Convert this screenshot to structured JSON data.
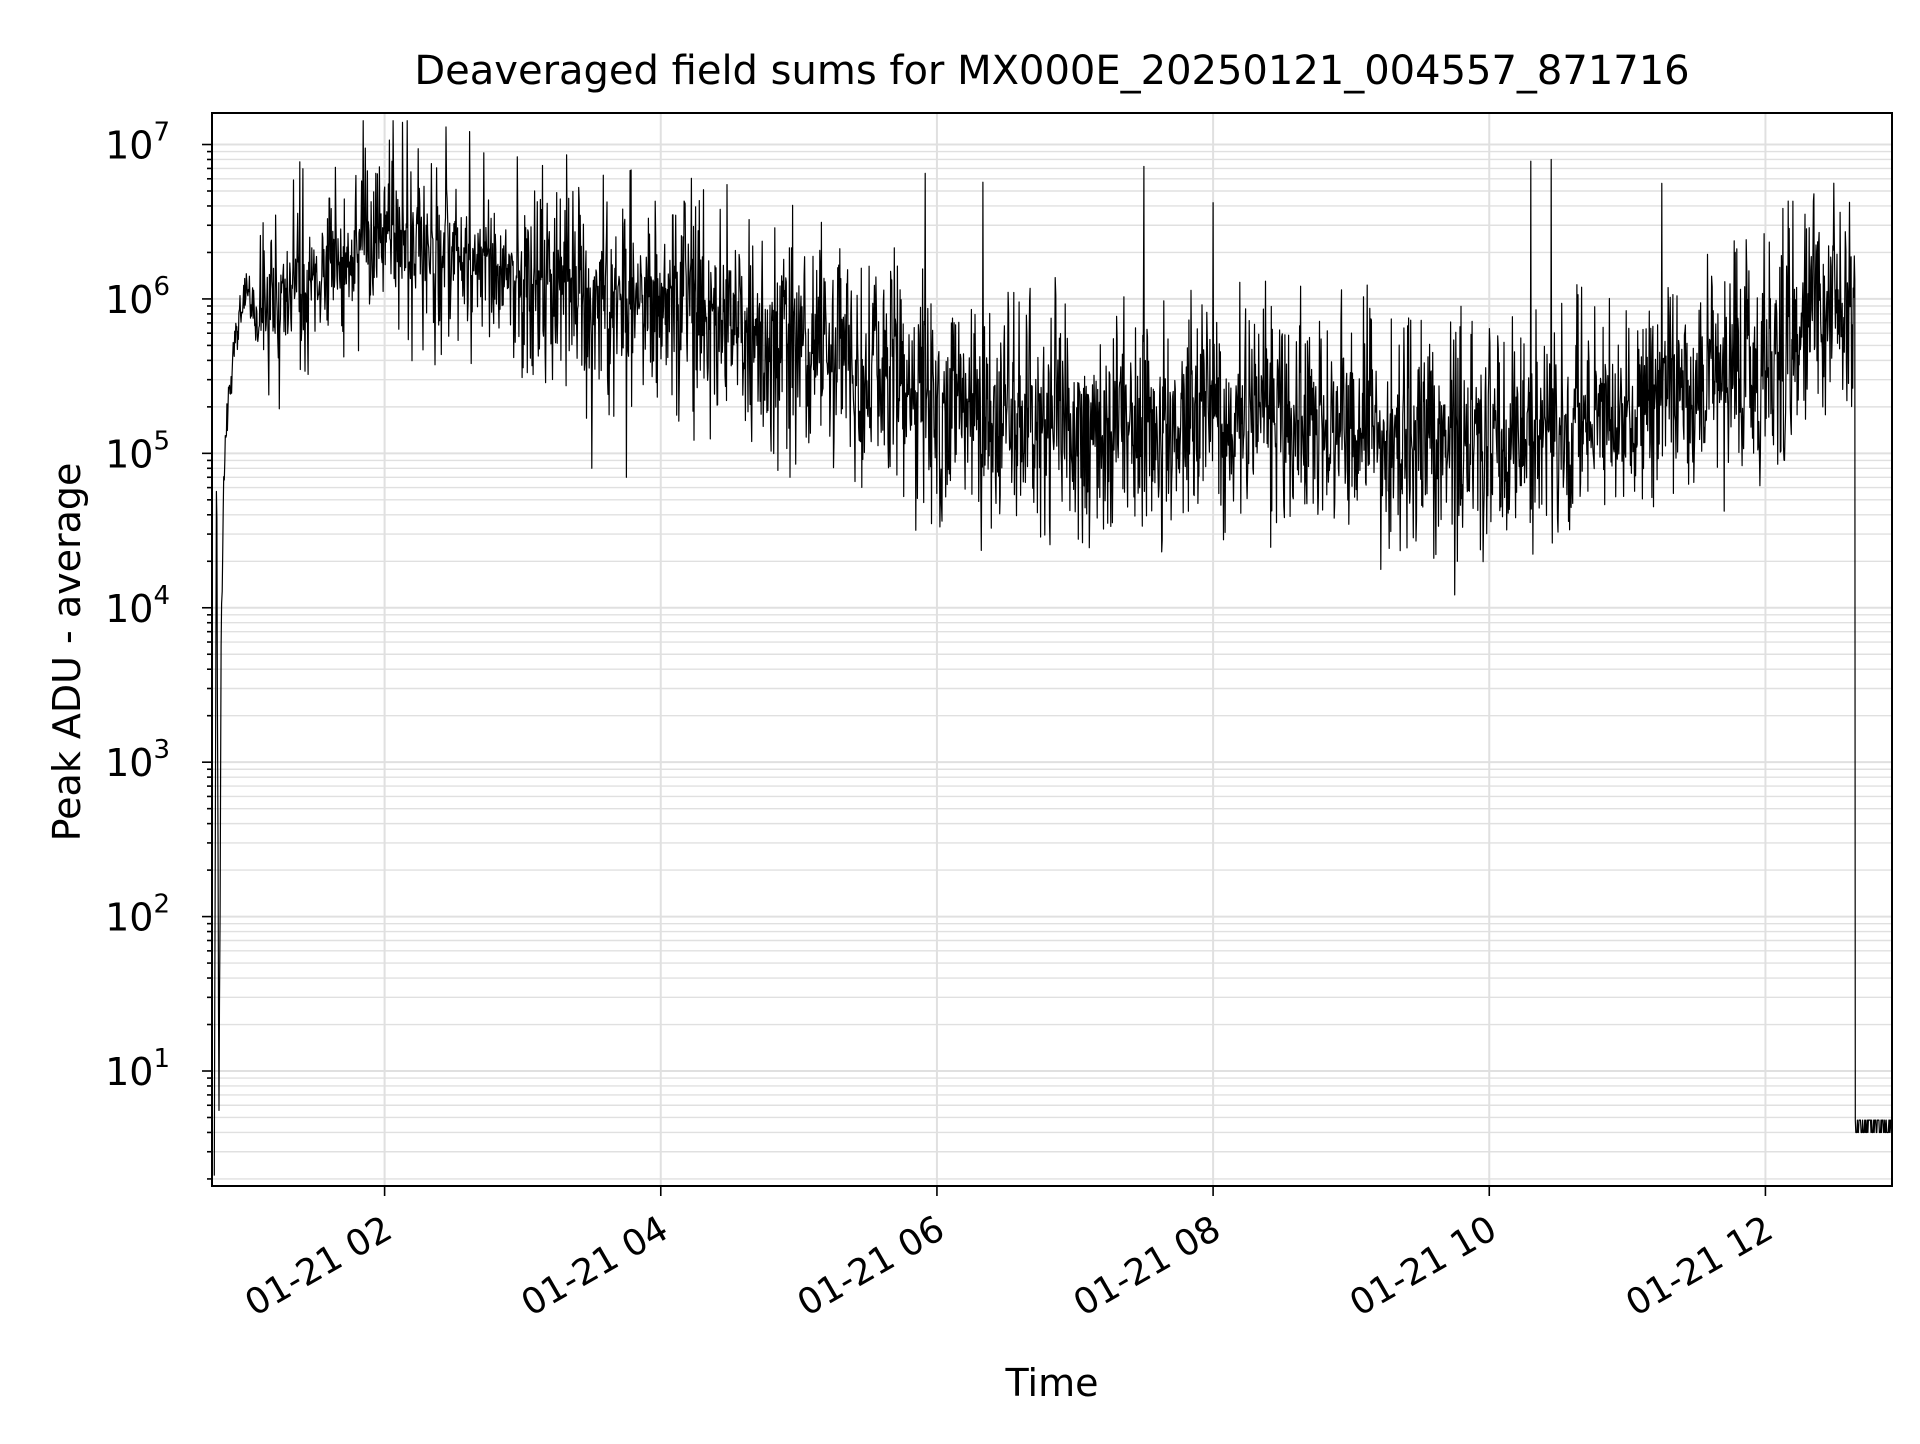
{
  "chart_data": {
    "type": "line",
    "title": "Deaveraged field sums for MX000E_20250121_004557_871716",
    "xlabel": "Time",
    "ylabel": "Peak ADU - average",
    "yscale": "log",
    "ylim": [
      1.8,
      16000000
    ],
    "xlim": [
      "2025-01-21 00:45",
      "2025-01-21 12:55"
    ],
    "grid": true,
    "line_color": "#000000",
    "grid_color": "#e0e0e0",
    "x_ticks": [
      {
        "value": "2025-01-21 02:00",
        "label": "01-21 02"
      },
      {
        "value": "2025-01-21 04:00",
        "label": "01-21 04"
      },
      {
        "value": "2025-01-21 06:00",
        "label": "01-21 06"
      },
      {
        "value": "2025-01-21 08:00",
        "label": "01-21 08"
      },
      {
        "value": "2025-01-21 10:00",
        "label": "01-21 10"
      },
      {
        "value": "2025-01-21 12:00",
        "label": "01-21 12"
      }
    ],
    "y_ticks": [
      {
        "value": 10,
        "base": "10",
        "exp": "1"
      },
      {
        "value": 100,
        "base": "10",
        "exp": "2"
      },
      {
        "value": 1000,
        "base": "10",
        "exp": "3"
      },
      {
        "value": 10000,
        "base": "10",
        "exp": "4"
      },
      {
        "value": 100000,
        "base": "10",
        "exp": "5"
      },
      {
        "value": 1000000,
        "base": "10",
        "exp": "6"
      },
      {
        "value": 10000000,
        "base": "10",
        "exp": "7"
      }
    ],
    "series": [
      {
        "points": [
          [
            "2025-01-21 00:46",
            2.5
          ],
          [
            "2025-01-21 00:47",
            150000
          ],
          [
            "2025-01-21 00:48",
            4
          ],
          [
            "2025-01-21 00:49",
            5000
          ],
          [
            "2025-01-21 00:50",
            60000
          ],
          [
            "2025-01-21 00:52",
            200000
          ],
          [
            "2025-01-21 00:55",
            600000
          ],
          [
            "2025-01-21 01:00",
            1200000
          ],
          [
            "2025-01-21 01:05",
            700000
          ],
          [
            "2025-01-21 01:15",
            1000000
          ],
          [
            "2025-01-21 01:30",
            1500000
          ],
          [
            "2025-01-21 01:45",
            2000000
          ],
          [
            "2025-01-21 02:00",
            2200000
          ],
          [
            "2025-01-21 02:15",
            2500000
          ],
          [
            "2025-01-21 02:30",
            2000000
          ],
          [
            "2025-01-21 03:00",
            1300000
          ],
          [
            "2025-01-21 03:30",
            1000000
          ],
          [
            "2025-01-21 04:00",
            900000
          ],
          [
            "2025-01-21 04:30",
            700000
          ],
          [
            "2025-01-21 05:00",
            500000
          ],
          [
            "2025-01-21 05:30",
            350000
          ],
          [
            "2025-01-21 06:00",
            200000
          ],
          [
            "2025-01-21 07:00",
            150000
          ],
          [
            "2025-01-21 08:00",
            180000
          ],
          [
            "2025-01-21 09:00",
            150000
          ],
          [
            "2025-01-21 10:00",
            110000
          ],
          [
            "2025-01-21 11:00",
            200000
          ],
          [
            "2025-01-21 12:00",
            400000
          ],
          [
            "2025-01-21 12:30",
            1000000
          ],
          [
            "2025-01-21 12:35",
            1100000
          ],
          [
            "2025-01-21 12:40",
            700000
          ],
          [
            "2025-01-21 12:42",
            10000
          ],
          [
            "2025-01-21 12:44",
            4
          ],
          [
            "2025-01-21 12:55",
            4
          ]
        ],
        "spikes": [
          [
            "2025-01-21 01:36",
            4500000
          ],
          [
            "2025-01-21 01:50",
            5800000
          ],
          [
            "2025-01-21 02:00",
            5300000
          ],
          [
            "2025-01-21 02:15",
            5200000
          ],
          [
            "2025-01-21 05:55",
            6500000
          ],
          [
            "2025-01-21 06:20",
            5700000
          ],
          [
            "2025-01-21 07:30",
            7200000
          ],
          [
            "2025-01-21 08:00",
            4200000
          ],
          [
            "2025-01-21 10:18",
            7800000
          ],
          [
            "2025-01-21 10:27",
            8000000
          ],
          [
            "2025-01-21 11:15",
            5600000
          ],
          [
            "2025-01-21 12:10",
            4300000
          ]
        ],
        "dips": [
          [
            "2025-01-21 03:30",
            80000
          ],
          [
            "2025-01-21 03:45",
            70000
          ],
          [
            "2025-01-21 06:00",
            55000
          ],
          [
            "2025-01-21 07:10",
            60000
          ],
          [
            "2025-01-21 08:50",
            65000
          ],
          [
            "2025-01-21 10:05",
            45000
          ],
          [
            "2025-01-21 10:35",
            32000
          ],
          [
            "2025-01-21 11:20",
            55000
          ]
        ]
      }
    ]
  }
}
